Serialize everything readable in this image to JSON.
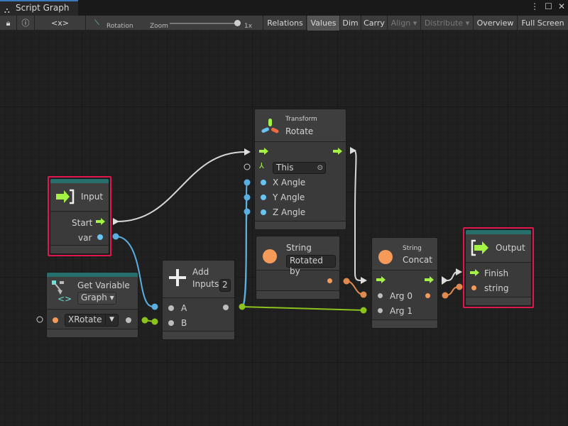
{
  "window": {
    "tab_title": "Script Graph",
    "tab_icon": "hierarchy-icon",
    "menu_icon": "kebab-menu-icon",
    "maximize_icon": "maximize-icon",
    "close_icon": "close-icon"
  },
  "toolbar": {
    "lock_icon": "lock-icon",
    "info_icon": "info-icon",
    "variables_icon": "<x>",
    "graph_name": "Rotation",
    "zoom_label": "Zoom",
    "zoom_value": "1x",
    "zoom_level": 1.0,
    "buttons": [
      {
        "label": "Relations",
        "active": false
      },
      {
        "label": "Values",
        "active": true
      },
      {
        "label": "Dim",
        "active": false
      },
      {
        "label": "Carry",
        "active": false
      },
      {
        "label": "Align ▾",
        "enabled": false
      },
      {
        "label": "Distribute ▾",
        "enabled": false
      },
      {
        "label": "Overview"
      },
      {
        "label": "Full Screen"
      }
    ]
  },
  "nodes": {
    "input": {
      "title": "Input",
      "ports": [
        "Start",
        "var"
      ],
      "selected": true
    },
    "get_variable": {
      "title": "Get Variable",
      "scope": "Graph",
      "variable": "XRotate"
    },
    "add": {
      "title_line1": "Add",
      "title_line2": "Inputs",
      "input_count": "2",
      "ports": [
        "A",
        "B"
      ]
    },
    "rotate": {
      "subtitle": "Transform",
      "title": "Rotate",
      "target": "This",
      "ports": [
        "X Angle",
        "Y Angle",
        "Z Angle"
      ]
    },
    "string": {
      "title": "String",
      "value": "Rotated by"
    },
    "concat": {
      "subtitle": "String",
      "title": "Concat",
      "ports": [
        "Arg 0",
        "Arg 1"
      ]
    },
    "output": {
      "title": "Output",
      "ports": [
        "Finish",
        "string"
      ],
      "selected": true
    }
  },
  "colors": {
    "flow": "#a4f246",
    "float": "#6ac4f2",
    "string": "#f69a5a",
    "selection": "#e0174f",
    "header": "#276f6c",
    "numeric_wire": "#8bc31c"
  }
}
